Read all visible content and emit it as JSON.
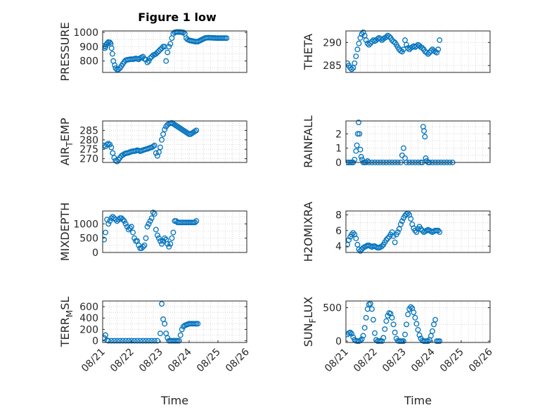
{
  "figure_title": "Figure 1 low",
  "colors": {
    "marker": "#0072BD",
    "axis": "#262626",
    "grid": "#cfcfcf"
  },
  "chart_data": [
    {
      "type": "scatter",
      "id": "pressure",
      "ylabel": "PRESSURE",
      "ylabel_parts": [
        "PRESSURE",
        "",
        ""
      ],
      "xlabel": "",
      "xticks": [],
      "xlim": [
        21.0,
        26.0
      ],
      "ylim": [
        720,
        1010
      ],
      "yticks": [
        800,
        900,
        1000
      ],
      "ytick_labels": [
        "800",
        "900",
        "1000"
      ],
      "grid": true,
      "x": [
        21.05,
        21.08,
        21.1,
        21.13,
        21.16,
        21.2,
        21.25,
        21.28,
        21.31,
        21.34,
        21.37,
        21.42,
        21.45,
        21.5,
        21.55,
        21.6,
        21.65,
        21.7,
        21.75,
        21.8,
        21.85,
        21.9,
        21.95,
        22.0,
        22.05,
        22.1,
        22.15,
        22.2,
        22.25,
        22.3,
        22.35,
        22.4,
        22.45,
        22.5,
        22.55,
        22.6,
        22.65,
        22.7,
        22.75,
        22.8,
        22.85,
        22.9,
        22.95,
        23.0,
        23.05,
        23.1,
        23.15,
        23.2,
        23.25,
        23.3,
        23.35,
        23.4,
        23.45,
        23.5,
        23.55,
        23.6,
        23.65,
        23.7,
        23.75,
        23.8,
        23.85,
        23.9,
        23.95,
        24.0,
        24.05,
        24.1,
        24.15,
        24.2,
        24.25,
        24.3,
        24.35,
        24.4,
        24.45,
        24.5,
        24.55,
        24.6,
        24.65,
        24.7,
        24.75,
        24.8,
        24.85,
        24.9,
        24.95,
        25.0,
        25.05,
        25.1,
        25.15,
        25.2,
        25.25,
        25.3
      ],
      "y": [
        905,
        890,
        900,
        915,
        925,
        932,
        930,
        920,
        890,
        850,
        800,
        770,
        750,
        740,
        742,
        750,
        765,
        780,
        795,
        805,
        808,
        810,
        812,
        813,
        812,
        815,
        818,
        815,
        812,
        820,
        825,
        830,
        815,
        810,
        790,
        800,
        820,
        830,
        840,
        845,
        850,
        860,
        870,
        880,
        890,
        900,
        900,
        800,
        860,
        900,
        920,
        960,
        990,
        1000,
        1002,
        1003,
        1003,
        1002,
        1001,
        1000,
        990,
        960,
        950,
        945,
        942,
        940,
        938,
        936,
        935,
        935,
        940,
        945,
        950,
        955,
        960,
        962,
        963,
        963,
        962,
        962,
        961,
        961,
        960,
        960,
        960,
        960,
        960,
        960,
        960,
        960
      ],
      "x_note": "points with day offsets are placed in the chart order"
    },
    {
      "type": "scatter",
      "id": "theta",
      "ylabel": "THETA",
      "ylabel_parts": [
        "THETA",
        "",
        ""
      ],
      "xlabel": "",
      "xticks": [],
      "xlim": [
        21.0,
        26.0
      ],
      "ylim": [
        283.5,
        292.5
      ],
      "yticks": [
        285,
        290
      ],
      "ytick_labels": [
        "285",
        "290"
      ],
      "grid": true,
      "x": [
        21.05,
        21.1,
        21.15,
        21.2,
        21.25,
        21.3,
        21.35,
        21.4,
        21.45,
        21.5,
        21.55,
        21.6,
        21.65,
        21.7,
        21.75,
        21.8,
        21.85,
        21.9,
        21.95,
        22.0,
        22.05,
        22.1,
        22.15,
        22.2,
        22.25,
        22.3,
        22.35,
        22.4,
        22.45,
        22.5,
        22.55,
        22.6,
        22.65,
        22.7,
        22.75,
        22.8,
        22.85,
        22.9,
        22.95,
        23.0,
        23.05,
        23.1,
        23.15,
        23.2,
        23.25,
        23.3,
        23.35,
        23.4,
        23.45,
        23.5,
        23.55,
        23.6,
        23.65,
        23.7,
        23.75,
        23.8,
        23.85,
        23.9,
        23.95,
        24.0,
        24.05,
        24.1,
        24.15,
        24.2,
        24.25
      ],
      "y": [
        285.5,
        285,
        284.5,
        284.2,
        284.5,
        285.5,
        287,
        288.5,
        289.8,
        291,
        291.8,
        292.2,
        291.5,
        290.5,
        289.8,
        289.5,
        289.8,
        290.2,
        290.5,
        290.3,
        290.5,
        290.8,
        291,
        290.8,
        290.5,
        290.8,
        291,
        291.2,
        291.5,
        291.3,
        291,
        290.5,
        290.2,
        290,
        289.5,
        289,
        288.5,
        288.2,
        288,
        288.5,
        290.5,
        289.5,
        288.8,
        288.5,
        288.8,
        289,
        289.2,
        289,
        289.2,
        289.5,
        289.3,
        289,
        288.8,
        288.5,
        288,
        287.8,
        287.5,
        287.8,
        288.2,
        288.5,
        288.2,
        288,
        287.8,
        288.5,
        290.5
      ]
    },
    {
      "type": "scatter",
      "id": "air_temp",
      "ylabel": "AIR_TEMP",
      "ylabel_parts": [
        "AIR",
        "T",
        "EMP"
      ],
      "xlabel": "",
      "xticks": [],
      "xlim": [
        21.0,
        26.0
      ],
      "ylim": [
        268,
        290
      ],
      "yticks": [
        270,
        275,
        280,
        285
      ],
      "ytick_labels": [
        "270",
        "275",
        "280",
        "285"
      ],
      "grid": true,
      "x": [
        21.05,
        21.1,
        21.15,
        21.2,
        21.25,
        21.3,
        21.35,
        21.4,
        21.45,
        21.5,
        21.55,
        21.6,
        21.65,
        21.7,
        21.75,
        21.8,
        21.85,
        21.9,
        21.95,
        22.0,
        22.05,
        22.1,
        22.15,
        22.2,
        22.25,
        22.3,
        22.35,
        22.4,
        22.45,
        22.5,
        22.55,
        22.6,
        22.65,
        22.7,
        22.75,
        22.8,
        22.85,
        22.9,
        22.95,
        23.0,
        23.05,
        23.1,
        23.15,
        23.2,
        23.25,
        23.3,
        23.35,
        23.4,
        23.45,
        23.5,
        23.55,
        23.6,
        23.65,
        23.7,
        23.75,
        23.8,
        23.85,
        23.9,
        23.95,
        24.0,
        24.05,
        24.1,
        24.15,
        24.2,
        24.25
      ],
      "y": [
        277,
        276.5,
        277.5,
        278,
        277.5,
        276,
        273,
        270.5,
        269,
        268.5,
        269.5,
        270.5,
        271.5,
        272,
        272.5,
        272.8,
        273,
        273.2,
        273.5,
        273.8,
        274,
        274,
        274.2,
        274.5,
        274.3,
        274,
        274.2,
        274.5,
        274.8,
        275,
        275.2,
        275.5,
        275.8,
        276,
        276.5,
        277,
        273,
        271.5,
        273.5,
        276,
        280,
        283,
        285.5,
        287,
        288,
        288.5,
        288.8,
        289,
        288.5,
        288,
        287.5,
        287,
        286.5,
        286,
        285.5,
        285,
        284.5,
        284,
        283.5,
        283,
        283,
        283.5,
        284,
        284.5,
        285
      ]
    },
    {
      "type": "scatter",
      "id": "rainfall",
      "ylabel": "RAINFALL",
      "ylabel_parts": [
        "RAINFALL",
        "",
        ""
      ],
      "xlabel": "",
      "xticks": [],
      "xlim": [
        21.0,
        26.0
      ],
      "ylim": [
        0,
        2.9
      ],
      "yticks": [
        0,
        1,
        2
      ],
      "ytick_labels": [
        "0",
        "1",
        "2"
      ],
      "grid": true,
      "x": [
        21.05,
        21.1,
        21.15,
        21.2,
        21.25,
        21.3,
        21.35,
        21.38,
        21.41,
        21.44,
        21.47,
        21.5,
        21.53,
        21.56,
        21.6,
        21.65,
        21.7,
        21.75,
        21.8,
        21.9,
        22.0,
        22.1,
        22.2,
        22.3,
        22.4,
        22.5,
        22.6,
        22.7,
        22.8,
        22.9,
        22.95,
        23.0,
        23.05,
        23.1,
        23.2,
        23.3,
        23.4,
        23.5,
        23.6,
        23.65,
        23.68,
        23.71,
        23.74,
        23.77,
        23.8,
        23.85,
        23.9,
        24.0,
        24.1,
        24.2,
        24.3,
        24.4,
        24.5,
        24.6,
        24.7
      ],
      "y": [
        0,
        0,
        0,
        0,
        0,
        0.2,
        0.8,
        1.2,
        2.0,
        2.8,
        2.0,
        0.9,
        0.4,
        0.2,
        0,
        0,
        0,
        0.1,
        0,
        0,
        0,
        0,
        0,
        0,
        0,
        0,
        0,
        0,
        0,
        0,
        0.5,
        1.0,
        0.3,
        0,
        0,
        0,
        0,
        0,
        0,
        0,
        2.5,
        2.2,
        1.8,
        0.3,
        0.1,
        0,
        0,
        0,
        0,
        0,
        0,
        0,
        0,
        0,
        0
      ]
    },
    {
      "type": "scatter",
      "id": "mixdepth",
      "ylabel": "MIXDEPTH",
      "ylabel_parts": [
        "MIXDEPTH",
        "",
        ""
      ],
      "xlabel": "",
      "xticks": [],
      "xlim": [
        21.0,
        26.0
      ],
      "ylim": [
        0,
        1450
      ],
      "yticks": [
        0,
        500,
        1000
      ],
      "ytick_labels": [
        "0",
        "500",
        "1000"
      ],
      "grid": true,
      "x": [
        21.05,
        21.1,
        21.15,
        21.2,
        21.25,
        21.3,
        21.35,
        21.4,
        21.45,
        21.5,
        21.55,
        21.6,
        21.65,
        21.7,
        21.75,
        21.8,
        21.85,
        21.9,
        21.95,
        22.0,
        22.05,
        22.1,
        22.15,
        22.2,
        22.25,
        22.3,
        22.35,
        22.4,
        22.45,
        22.5,
        22.55,
        22.6,
        22.65,
        22.7,
        22.75,
        22.8,
        22.85,
        22.9,
        22.95,
        23.0,
        23.05,
        23.1,
        23.15,
        23.2,
        23.25,
        23.3,
        23.35,
        23.4,
        23.45,
        23.5,
        23.55,
        23.6,
        23.65,
        23.7,
        23.75,
        23.8,
        23.85,
        23.9,
        23.95,
        24.0,
        24.05,
        24.1,
        24.15,
        24.2,
        24.25
      ],
      "y": [
        450,
        700,
        1150,
        1000,
        1100,
        1200,
        1250,
        1200,
        1150,
        1100,
        1150,
        1200,
        1200,
        1150,
        1100,
        1000,
        900,
        800,
        850,
        900,
        700,
        500,
        400,
        400,
        250,
        150,
        150,
        200,
        250,
        500,
        900,
        1000,
        1100,
        1200,
        1400,
        1350,
        800,
        600,
        500,
        400,
        300,
        400,
        500,
        450,
        300,
        200,
        300,
        500,
        700,
        1100,
        1100,
        1050,
        1050,
        1050,
        1050,
        1050,
        1050,
        1050,
        1050,
        1050,
        1050,
        1050,
        1050,
        1050,
        1100
      ]
    },
    {
      "type": "scatter",
      "id": "h2omixra",
      "ylabel": "H2OMIXRA",
      "ylabel_parts": [
        "H2OMIXRA",
        "",
        ""
      ],
      "xlabel": "",
      "xticks": [],
      "xlim": [
        21.0,
        26.0
      ],
      "ylim": [
        3.2,
        8.5
      ],
      "yticks": [
        4,
        6,
        8
      ],
      "ytick_labels": [
        "4",
        "6",
        "8"
      ],
      "grid": true,
      "x": [
        21.05,
        21.1,
        21.15,
        21.2,
        21.25,
        21.3,
        21.35,
        21.4,
        21.45,
        21.5,
        21.55,
        21.6,
        21.65,
        21.7,
        21.75,
        21.8,
        21.85,
        21.9,
        21.95,
        22.0,
        22.05,
        22.1,
        22.15,
        22.2,
        22.25,
        22.3,
        22.35,
        22.4,
        22.45,
        22.5,
        22.55,
        22.6,
        22.65,
        22.7,
        22.75,
        22.8,
        22.85,
        22.9,
        22.95,
        23.0,
        23.05,
        23.1,
        23.15,
        23.2,
        23.25,
        23.3,
        23.35,
        23.4,
        23.45,
        23.5,
        23.55,
        23.6,
        23.65,
        23.7,
        23.75,
        23.8,
        23.85,
        23.9,
        23.95,
        24.0,
        24.05,
        24.1,
        24.15,
        24.2,
        24.25
      ],
      "y": [
        4.2,
        4.8,
        5.2,
        5.5,
        5.7,
        5.5,
        5.0,
        4.2,
        3.6,
        3.4,
        3.6,
        3.8,
        3.9,
        4.0,
        4.1,
        4.1,
        4.0,
        3.9,
        4.0,
        4.0,
        3.9,
        3.8,
        3.8,
        3.9,
        4.0,
        4.2,
        4.5,
        4.8,
        5.0,
        5.2,
        5.5,
        5.8,
        5.3,
        4.5,
        5.5,
        5.8,
        6.2,
        6.8,
        7.2,
        7.6,
        7.9,
        8.1,
        8.2,
        8.0,
        7.5,
        6.8,
        6.3,
        6.0,
        5.8,
        6.2,
        6.5,
        6.2,
        6.0,
        5.8,
        5.9,
        6.0,
        6.1,
        6.0,
        5.9,
        5.8,
        5.9,
        6.0,
        6.0,
        6.0,
        5.8
      ]
    },
    {
      "type": "scatter",
      "id": "terr_msl",
      "ylabel": "TERR_MSL",
      "ylabel_parts": [
        "TERR",
        "M",
        "SL"
      ],
      "xlabel": "Time",
      "xlim": [
        21.0,
        26.0
      ],
      "xticks": [
        21,
        22,
        23,
        24,
        25,
        26
      ],
      "xtick_labels": [
        "08/21",
        "08/22",
        "08/23",
        "08/24",
        "08/25",
        "08/26"
      ],
      "ylim": [
        -30,
        700
      ],
      "yticks": [
        0,
        200,
        400,
        600
      ],
      "ytick_labels": [
        "0",
        "200",
        "400",
        "600"
      ],
      "grid": true,
      "x": [
        21.05,
        21.1,
        21.15,
        21.2,
        21.3,
        21.4,
        21.5,
        21.6,
        21.7,
        21.8,
        21.9,
        22.0,
        22.1,
        22.2,
        22.3,
        22.4,
        22.5,
        22.6,
        22.7,
        22.8,
        22.9,
        23.0,
        23.05,
        23.1,
        23.15,
        23.2,
        23.25,
        23.3,
        23.35,
        23.4,
        23.45,
        23.5,
        23.55,
        23.6,
        23.65,
        23.7,
        23.75,
        23.8,
        23.85,
        23.9,
        23.95,
        24.0,
        24.05,
        24.1,
        24.15,
        24.2,
        24.25,
        24.3
      ],
      "y": [
        50,
        100,
        10,
        0,
        0,
        0,
        0,
        0,
        0,
        0,
        0,
        0,
        0,
        0,
        0,
        0,
        0,
        0,
        0,
        0,
        0,
        130,
        650,
        380,
        300,
        130,
        50,
        0,
        0,
        0,
        0,
        0,
        0,
        0,
        0,
        100,
        200,
        250,
        270,
        280,
        290,
        300,
        300,
        300,
        300,
        300,
        300,
        300
      ]
    },
    {
      "type": "scatter",
      "id": "sun_flux",
      "ylabel": "SUN_FLUX",
      "ylabel_parts": [
        "SUN",
        "F",
        "LUX"
      ],
      "xlabel": "Time",
      "xlim": [
        21.0,
        26.0
      ],
      "xticks": [
        21,
        22,
        23,
        24,
        25,
        26
      ],
      "xtick_labels": [
        "08/21",
        "08/22",
        "08/23",
        "08/24",
        "08/25",
        "08/26"
      ],
      "ylim": [
        -20,
        600
      ],
      "yticks": [
        0,
        500
      ],
      "ytick_labels": [
        "0",
        "500"
      ],
      "grid": true,
      "x": [
        21.05,
        21.1,
        21.15,
        21.2,
        21.25,
        21.3,
        21.35,
        21.4,
        21.45,
        21.5,
        21.55,
        21.6,
        21.65,
        21.7,
        21.75,
        21.8,
        21.85,
        21.9,
        21.95,
        22.0,
        22.05,
        22.1,
        22.15,
        22.2,
        22.25,
        22.3,
        22.35,
        22.4,
        22.45,
        22.5,
        22.55,
        22.6,
        22.65,
        22.7,
        22.75,
        22.8,
        22.85,
        22.9,
        22.95,
        23.0,
        23.05,
        23.1,
        23.15,
        23.2,
        23.25,
        23.3,
        23.35,
        23.4,
        23.45,
        23.5,
        23.55,
        23.6,
        23.65,
        23.7,
        23.75,
        23.8,
        23.85,
        23.9,
        23.95,
        24.0,
        24.05,
        24.1,
        24.15,
        24.2,
        24.25
      ],
      "y": [
        100,
        120,
        130,
        110,
        60,
        20,
        5,
        0,
        0,
        10,
        30,
        80,
        200,
        350,
        480,
        550,
        560,
        480,
        320,
        120,
        20,
        0,
        0,
        5,
        0,
        50,
        180,
        300,
        380,
        420,
        410,
        350,
        250,
        130,
        40,
        5,
        0,
        0,
        0,
        0,
        100,
        250,
        400,
        480,
        510,
        490,
        430,
        350,
        260,
        170,
        90,
        40,
        10,
        0,
        0,
        0,
        0,
        20,
        80,
        150,
        250,
        320,
        0,
        0,
        0
      ]
    }
  ]
}
